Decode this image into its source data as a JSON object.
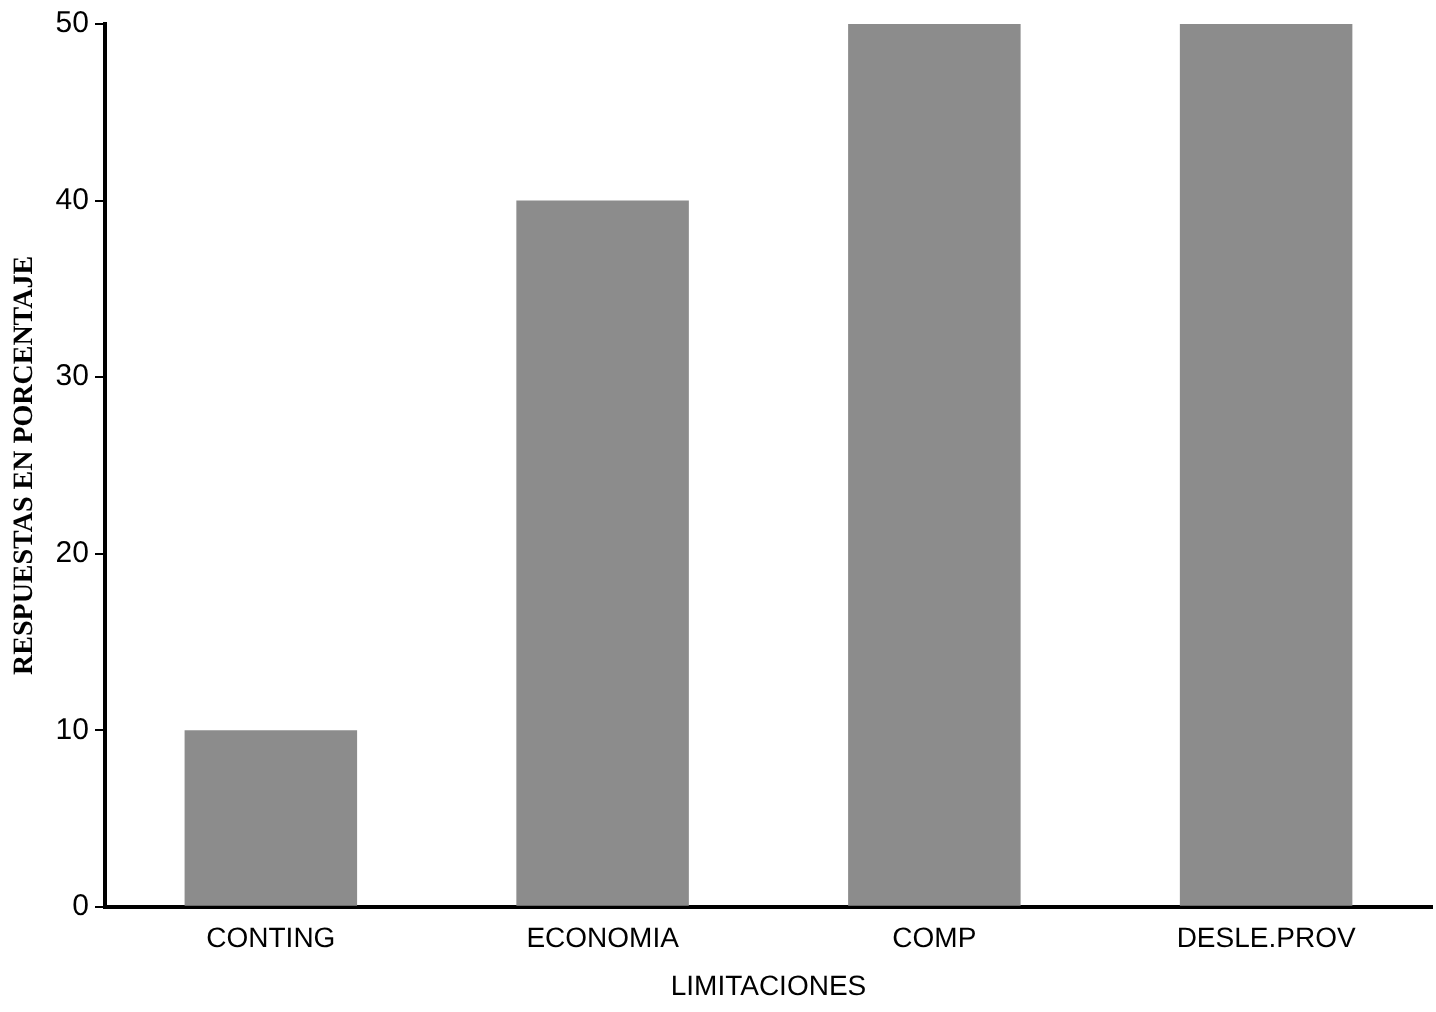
{
  "chart_data": {
    "type": "bar",
    "xlabel": "LIMITACIONES",
    "ylabel": "RESPUESTAS EN PORCENTAJE",
    "categories": [
      "CONTING",
      "ECONOMIA",
      "COMP",
      "DESLE.PROV"
    ],
    "values": [
      10,
      40,
      50,
      50
    ],
    "color": "#8c8c8c",
    "ylim": [
      0,
      50
    ],
    "yticks": [
      0,
      10,
      20,
      30,
      40,
      50
    ],
    "grid": false,
    "legend": false
  }
}
